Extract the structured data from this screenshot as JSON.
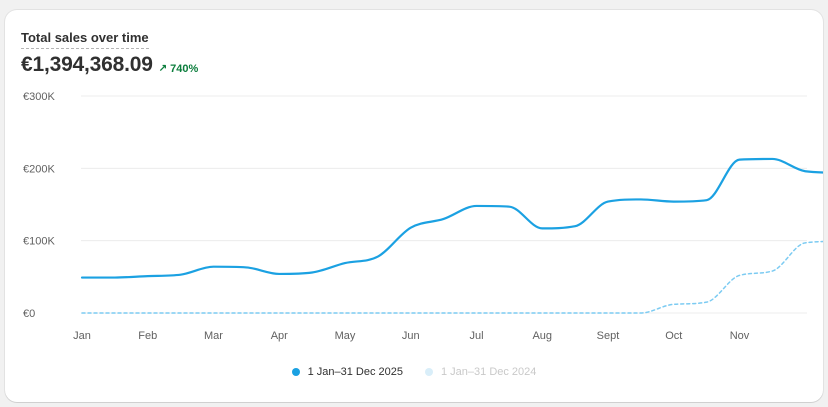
{
  "card": {
    "title": "Total sales over time",
    "total": "€1,394,368.09",
    "change": "740%",
    "change_icon": "arrow-up-right-icon"
  },
  "colors": {
    "current": "#1ba1e2",
    "previous": "#7ccbf2",
    "previous_legend": "#d9eef9",
    "positive": "#0c7e3d"
  },
  "legend": {
    "current_label": "1 Jan–31 Dec 2025",
    "previous_label": "1 Jan–31 Dec 2024"
  },
  "chart_data": {
    "type": "line",
    "ylim": [
      0,
      300000
    ],
    "y_ticks": [
      0,
      100000,
      200000,
      300000
    ],
    "y_tick_labels": [
      "€0",
      "€100K",
      "€200K",
      "€300K"
    ],
    "categories": [
      "Jan",
      "Feb",
      "Mar",
      "Apr",
      "May",
      "Jun",
      "Jul",
      "Aug",
      "Sept",
      "Oct",
      "Nov"
    ],
    "x": [
      0,
      0.5,
      1,
      1.5,
      2,
      2.5,
      3,
      3.5,
      4,
      4.5,
      5,
      5.5,
      6,
      6.5,
      7,
      7.5,
      8,
      8.5,
      9,
      9.5,
      10,
      10.5,
      11,
      11.5,
      12
    ],
    "series": [
      {
        "name": "1 Jan–31 Dec 2025",
        "style": "solid",
        "values": [
          49000,
          49000,
          51000,
          53000,
          64000,
          63000,
          54000,
          56000,
          69000,
          78000,
          118000,
          130000,
          148000,
          147000,
          117000,
          120000,
          154000,
          157000,
          154000,
          156000,
          212000,
          213000,
          196000,
          194000,
          194000
        ]
      },
      {
        "name": "1 Jan–31 Dec 2024",
        "style": "dashed",
        "values": [
          0,
          0,
          0,
          0,
          0,
          0,
          0,
          0,
          0,
          0,
          0,
          0,
          0,
          0,
          0,
          0,
          0,
          0,
          12000,
          15000,
          52000,
          58000,
          97000,
          99000,
          99000
        ]
      }
    ],
    "grid": true,
    "legend_position": "bottom"
  }
}
